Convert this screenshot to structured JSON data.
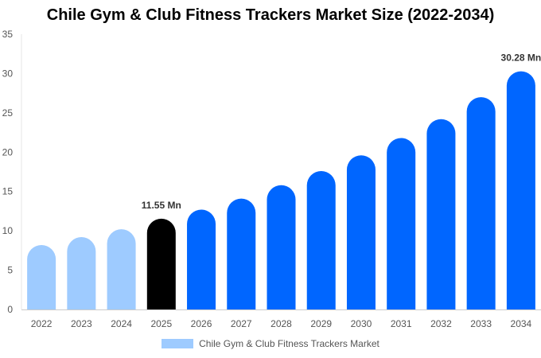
{
  "chart_data": {
    "type": "bar",
    "title": "Chile Gym & Club Fitness Trackers Market Size (2022-2034)",
    "xlabel": "",
    "ylabel": "",
    "categories": [
      "2022",
      "2023",
      "2024",
      "2025",
      "2026",
      "2027",
      "2028",
      "2029",
      "2030",
      "2031",
      "2032",
      "2033",
      "2034"
    ],
    "series": [
      {
        "name": "Chile Gym & Club Fitness Trackers Market",
        "values": [
          8.2,
          9.2,
          10.2,
          11.55,
          12.7,
          14.1,
          15.8,
          17.6,
          19.6,
          21.8,
          24.2,
          27.0,
          30.28
        ]
      }
    ],
    "ylim": [
      0,
      35
    ],
    "yticks": [
      0,
      5,
      10,
      15,
      20,
      25,
      30,
      35
    ],
    "grid": false,
    "legend_position": "bottom",
    "colors": {
      "historical": "#9ecbff",
      "current": "#000000",
      "forecast": "#0066ff",
      "legend_swatch": "#9ecbff"
    },
    "bar_color_groups": [
      "historical",
      "historical",
      "historical",
      "current",
      "forecast",
      "forecast",
      "forecast",
      "forecast",
      "forecast",
      "forecast",
      "forecast",
      "forecast",
      "forecast"
    ],
    "annotations": [
      {
        "index": 3,
        "text": "11.55 Mn"
      },
      {
        "index": 12,
        "text": "30.28 Mn"
      }
    ]
  }
}
